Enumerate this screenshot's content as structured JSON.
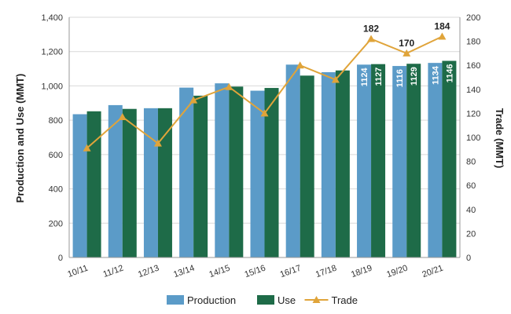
{
  "chart_data": {
    "type": "bar",
    "categories": [
      "10/11",
      "11/12",
      "12/13",
      "13/14",
      "14/15",
      "15/16",
      "16/17",
      "17/18",
      "18/19",
      "19/20",
      "20/21"
    ],
    "series": [
      {
        "name": "Production",
        "kind": "bar",
        "axis": "left",
        "color": "#5b9bc8",
        "values": [
          835,
          888,
          870,
          990,
          1015,
          972,
          1124,
          1080,
          1124,
          1116,
          1134
        ],
        "labels": [
          "",
          "",
          "",
          "",
          "",
          "",
          "",
          "",
          "1124",
          "1116",
          "1134"
        ]
      },
      {
        "name": "Use",
        "kind": "bar",
        "axis": "left",
        "color": "#1e6b48",
        "values": [
          852,
          866,
          870,
          943,
          996,
          988,
          1060,
          1090,
          1127,
          1129,
          1146
        ],
        "labels": [
          "",
          "",
          "",
          "",
          "",
          "",
          "",
          "",
          "1127",
          "1129",
          "1146"
        ]
      },
      {
        "name": "Trade",
        "kind": "line",
        "axis": "right",
        "color": "#e0a43a",
        "values": [
          91,
          117,
          95,
          131,
          142,
          120,
          160,
          148,
          182,
          170,
          184
        ],
        "labels": [
          "",
          "",
          "",
          "",
          "",
          "",
          "",
          "",
          "182",
          "170",
          "184"
        ]
      }
    ],
    "ylabel": "Production and Use (MMT)",
    "y2label": "Trade (MMT)",
    "ylim": [
      0,
      1400
    ],
    "y2lim": [
      0,
      200
    ],
    "yticks": [
      "0",
      "200",
      "400",
      "600",
      "800",
      "1,000",
      "1,200",
      "1,400"
    ],
    "y2ticks": [
      "0",
      "20",
      "40",
      "60",
      "80",
      "100",
      "120",
      "140",
      "160",
      "180",
      "200"
    ],
    "grid": true,
    "legend": "bottom"
  }
}
